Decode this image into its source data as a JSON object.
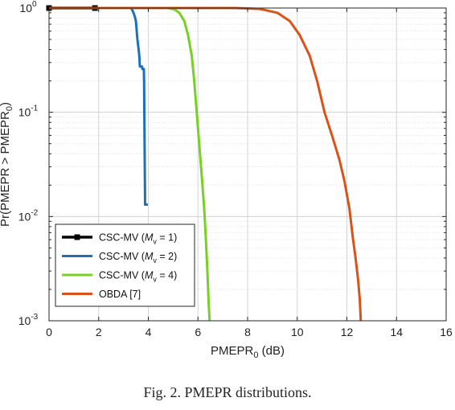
{
  "caption": "Fig. 2.  PMEPR distributions.",
  "chart_data": {
    "type": "line",
    "xlabel": "PMEPR",
    "xlabel_sub": "0",
    "xlabel_unit": " (dB)",
    "ylabel": "Pr(PMEPR > PMEPR",
    "ylabel_sub": "0",
    "ylabel_end": ")",
    "xlim": [
      0,
      16
    ],
    "ylim": [
      0.001,
      1
    ],
    "yscale": "log",
    "grid": true,
    "legend_position": "bottom-left",
    "x_ticks": [
      "0",
      "2",
      "4",
      "6",
      "8",
      "10",
      "12",
      "14",
      "16"
    ],
    "y_ticks": [
      {
        "base": "10",
        "exp": "0"
      },
      {
        "base": "10",
        "exp": "-1"
      },
      {
        "base": "10",
        "exp": "-2"
      },
      {
        "base": "10",
        "exp": "-3"
      }
    ],
    "series": [
      {
        "name": "CSC-MV (M_v = 1)",
        "label_pre": "CSC-MV (",
        "label_var": "M",
        "label_sub": "v",
        "label_post": " = 1)",
        "color": "#000000",
        "marker": "square",
        "points": [
          [
            0,
            1
          ],
          [
            1.85,
            1
          ]
        ]
      },
      {
        "name": "CSC-MV (M_v = 2)",
        "label_pre": "CSC-MV (",
        "label_var": "M",
        "label_sub": "v",
        "label_post": " = 2)",
        "color": "#1a72bd",
        "points": [
          [
            0,
            1
          ],
          [
            3.3,
            1
          ],
          [
            3.36,
            0.95
          ],
          [
            3.42,
            0.88
          ],
          [
            3.46,
            0.82
          ],
          [
            3.5,
            0.75
          ],
          [
            3.52,
            0.66
          ],
          [
            3.54,
            0.57
          ],
          [
            3.56,
            0.5
          ],
          [
            3.58,
            0.46
          ],
          [
            3.6,
            0.42
          ],
          [
            3.62,
            0.38
          ],
          [
            3.64,
            0.34
          ],
          [
            3.65,
            0.3
          ],
          [
            3.66,
            0.275
          ],
          [
            3.75,
            0.275
          ],
          [
            3.76,
            0.26
          ],
          [
            3.82,
            0.26
          ],
          [
            3.83,
            0.2
          ],
          [
            3.84,
            0.1
          ],
          [
            3.85,
            0.05
          ],
          [
            3.86,
            0.025
          ],
          [
            3.87,
            0.013
          ],
          [
            3.98,
            0.013
          ]
        ]
      },
      {
        "name": "CSC-MV (M_v = 4)",
        "label_pre": "CSC-MV (",
        "label_var": "M",
        "label_sub": "v",
        "label_post": " = 4)",
        "color": "#77d123",
        "points": [
          [
            0,
            1
          ],
          [
            4.8,
            1
          ],
          [
            5.05,
            0.97
          ],
          [
            5.25,
            0.9
          ],
          [
            5.45,
            0.75
          ],
          [
            5.6,
            0.55
          ],
          [
            5.75,
            0.35
          ],
          [
            5.85,
            0.2
          ],
          [
            5.95,
            0.1
          ],
          [
            6.05,
            0.05
          ],
          [
            6.15,
            0.025
          ],
          [
            6.25,
            0.012
          ],
          [
            6.32,
            0.006
          ],
          [
            6.38,
            0.003
          ],
          [
            6.43,
            0.0015
          ],
          [
            6.47,
            0.001
          ]
        ]
      },
      {
        "name": "OBDA [7]",
        "label_pre": "OBDA [7]",
        "label_var": "",
        "label_sub": "",
        "label_post": "",
        "color": "#d95319",
        "points": [
          [
            0,
            1
          ],
          [
            7.5,
            1
          ],
          [
            8.5,
            0.98
          ],
          [
            9.2,
            0.9
          ],
          [
            9.7,
            0.75
          ],
          [
            10.1,
            0.55
          ],
          [
            10.5,
            0.35
          ],
          [
            10.8,
            0.2
          ],
          [
            11.1,
            0.1
          ],
          [
            11.4,
            0.06
          ],
          [
            11.7,
            0.035
          ],
          [
            11.9,
            0.022
          ],
          [
            12.1,
            0.012
          ],
          [
            12.25,
            0.006
          ],
          [
            12.35,
            0.004
          ],
          [
            12.45,
            0.0025
          ],
          [
            12.52,
            0.0016
          ],
          [
            12.56,
            0.001
          ]
        ]
      }
    ]
  }
}
